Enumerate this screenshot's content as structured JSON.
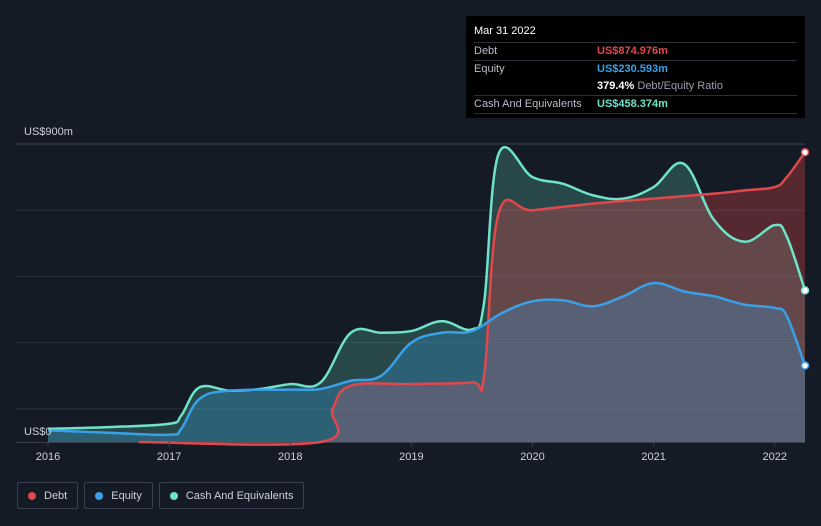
{
  "tooltip": {
    "date": "Mar 31 2022",
    "rows": [
      {
        "label": "Debt",
        "value": "US$874.976m",
        "color": "#e0484b"
      },
      {
        "label": "Equity",
        "value": "US$230.593m",
        "color": "#3aa0e8"
      },
      {
        "label": "",
        "value": "379.4%",
        "suffix": "Debt/Equity Ratio",
        "color": "#ffffff"
      },
      {
        "label": "Cash And Equivalents",
        "value": "US$458.374m",
        "color": "#6fe3c8"
      }
    ]
  },
  "legend": [
    {
      "label": "Debt",
      "color": "#e0484b"
    },
    {
      "label": "Equity",
      "color": "#3aa0e8"
    },
    {
      "label": "Cash And Equivalents",
      "color": "#6fe3c8"
    }
  ],
  "chart_data": {
    "type": "area",
    "y_top_label": "US$900m",
    "y_bottom_label": "US$0",
    "ylim": [
      0,
      900
    ],
    "xlim": [
      2016.0,
      2022.25
    ],
    "x_ticks": [
      "2016",
      "2017",
      "2018",
      "2019",
      "2020",
      "2021",
      "2022"
    ],
    "series": [
      {
        "name": "Debt",
        "color": "#e0484b",
        "points": [
          [
            2016.75,
            0
          ],
          [
            2018.25,
            0
          ],
          [
            2018.35,
            100
          ],
          [
            2018.5,
            170
          ],
          [
            2019.0,
            175
          ],
          [
            2019.5,
            180
          ],
          [
            2019.6,
            200
          ],
          [
            2019.72,
            690
          ],
          [
            2020.0,
            700
          ],
          [
            2020.5,
            720
          ],
          [
            2021.0,
            735
          ],
          [
            2021.5,
            750
          ],
          [
            2021.75,
            760
          ],
          [
            2022.0,
            770
          ],
          [
            2022.1,
            800
          ],
          [
            2022.25,
            875
          ]
        ]
      },
      {
        "name": "Equity",
        "color": "#3aa0e8",
        "points": [
          [
            2016.0,
            35
          ],
          [
            2016.5,
            28
          ],
          [
            2017.0,
            22
          ],
          [
            2017.1,
            40
          ],
          [
            2017.25,
            130
          ],
          [
            2017.5,
            155
          ],
          [
            2018.0,
            158
          ],
          [
            2018.25,
            160
          ],
          [
            2018.5,
            185
          ],
          [
            2018.75,
            200
          ],
          [
            2019.0,
            300
          ],
          [
            2019.25,
            330
          ],
          [
            2019.5,
            335
          ],
          [
            2019.75,
            390
          ],
          [
            2020.0,
            425
          ],
          [
            2020.25,
            428
          ],
          [
            2020.5,
            410
          ],
          [
            2020.75,
            440
          ],
          [
            2021.0,
            480
          ],
          [
            2021.25,
            455
          ],
          [
            2021.5,
            440
          ],
          [
            2021.75,
            415
          ],
          [
            2022.0,
            405
          ],
          [
            2022.1,
            380
          ],
          [
            2022.25,
            231
          ]
        ]
      },
      {
        "name": "Cash And Equivalents",
        "color": "#6fe3c8",
        "points": [
          [
            2016.0,
            40
          ],
          [
            2016.5,
            45
          ],
          [
            2017.0,
            55
          ],
          [
            2017.1,
            80
          ],
          [
            2017.25,
            165
          ],
          [
            2017.5,
            155
          ],
          [
            2017.75,
            160
          ],
          [
            2018.0,
            175
          ],
          [
            2018.25,
            180
          ],
          [
            2018.5,
            330
          ],
          [
            2018.75,
            330
          ],
          [
            2019.0,
            335
          ],
          [
            2019.25,
            365
          ],
          [
            2019.5,
            340
          ],
          [
            2019.6,
            420
          ],
          [
            2019.72,
            870
          ],
          [
            2020.0,
            800
          ],
          [
            2020.25,
            780
          ],
          [
            2020.5,
            745
          ],
          [
            2020.75,
            735
          ],
          [
            2021.0,
            770
          ],
          [
            2021.25,
            840
          ],
          [
            2021.5,
            670
          ],
          [
            2021.75,
            605
          ],
          [
            2022.0,
            655
          ],
          [
            2022.1,
            620
          ],
          [
            2022.25,
            458
          ]
        ]
      }
    ]
  }
}
